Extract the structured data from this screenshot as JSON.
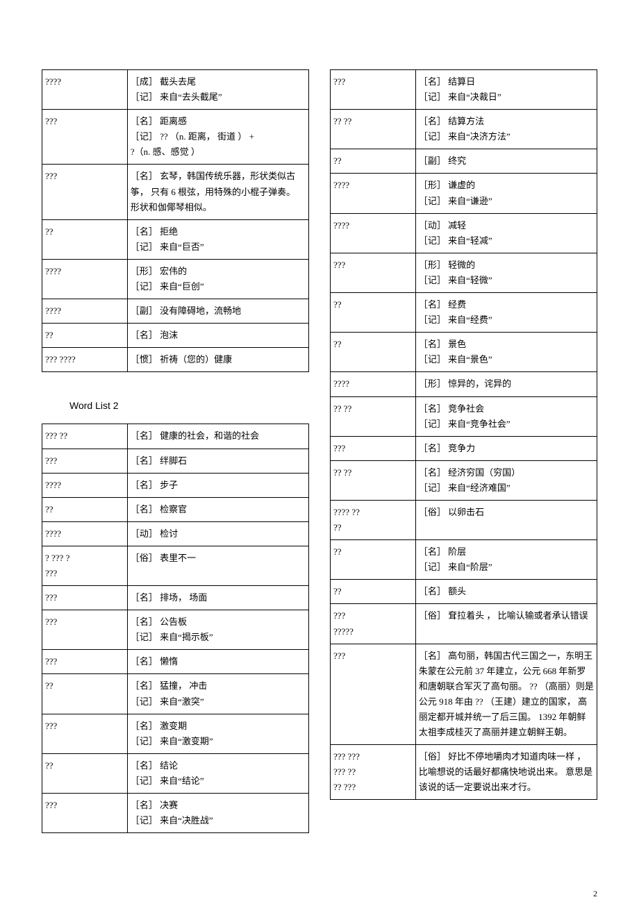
{
  "left_top": {
    "rows": [
      {
        "term": "????",
        "def": "［成］ 截头去尾\n［记］ 来自“去头截尾”"
      },
      {
        "term": "???",
        "def": "［名］ 距离感\n［记］ ??  （n. 距离， 街道 ） +\n?（n. 感、感觉 ）"
      },
      {
        "term": "???",
        "def": "［名］ 玄琴，韩国传统乐器，形状类似古筝， 只有 6 根弦，用特殊的小棍子弹奏。    形状和伽倻琴相似。"
      },
      {
        "term": "??",
        "def": "［名］ 拒绝\n［记］ 来自“巨否”"
      },
      {
        "term": "????",
        "def": "［形］ 宏伟的\n［记］ 来自“巨创”"
      },
      {
        "term": "????",
        "def": "［副］ 没有障碍地，流畅地"
      },
      {
        "term": "??",
        "def": "［名］ 泡沫"
      },
      {
        "term": "???    ????",
        "def": "［惯］ 祈祷（您的）健康"
      }
    ]
  },
  "heading": "Word List 2",
  "left_bottom": {
    "rows": [
      {
        "term": "???   ??",
        "def": "［名］ 健康的社会，和谐的社会"
      },
      {
        "term": "???",
        "def": "［名］ 绊脚石"
      },
      {
        "term": "????",
        "def": "［名］ 步子"
      },
      {
        "term": "??",
        "def": "［名］ 检察官"
      },
      {
        "term": "????",
        "def": "［动］ 检讨"
      },
      {
        "term": "?  ???    ?\n???",
        "def": "［俗］ 表里不一"
      },
      {
        "term": "???",
        "def": "［名］ 排场， 场面"
      },
      {
        "term": "???",
        "def": "［名］ 公告板\n［记］ 来自“揭示板”"
      },
      {
        "term": "???",
        "def": "［名］ 懒惰"
      },
      {
        "term": "??",
        "def": "［名］ 猛撞， 冲击\n［记］ 来自“激突”"
      },
      {
        "term": "???",
        "def": "［名］ 激变期\n［记］ 来自“激变期”"
      },
      {
        "term": "??",
        "def": "［名］ 结论\n［记］ 来自“结论”"
      },
      {
        "term": "???",
        "def": "［名］ 决赛\n［记］ 来自“决胜战”"
      }
    ]
  },
  "right": {
    "rows": [
      {
        "term": "???",
        "def": "［名］ 结算日\n［记］ 来自“决裁日”"
      },
      {
        "term": "??   ??",
        "def": "［名］ 结算方法\n［记］ 来自“决济方法”"
      },
      {
        "term": "??",
        "def": "［副］ 终究"
      },
      {
        "term": "????",
        "def": "［形］ 谦虚的\n［记］ 来自“谦逊”"
      },
      {
        "term": "????",
        "def": "［动］ 减轻\n［记］ 来自“轻减”"
      },
      {
        "term": "???",
        "def": "［形］ 轻微的\n［记］ 来自“轻微”"
      },
      {
        "term": "??",
        "def": "［名］ 经费\n［记］ 来自“经费”"
      },
      {
        "term": "??",
        "def": "［名］ 景色\n［记］ 来自“景色”"
      },
      {
        "term": "????",
        "def": "［形］ 惊异的，诧异的"
      },
      {
        "term": "??   ??",
        "def": "［名］ 竞争社会\n［记］ 来自“竞争社会”"
      },
      {
        "term": "???",
        "def": "［名］ 竞争力"
      },
      {
        "term": "??   ??",
        "def": "［名］ 经济穷国（穷国）\n［记］ 来自“经济难国”"
      },
      {
        "term": "????    ??\n??",
        "def": "［俗］ 以卵击石"
      },
      {
        "term": "??",
        "def": "［名］ 阶层\n［记］ 来自“阶层”"
      },
      {
        "term": "??",
        "def": "［名］ 额头"
      },
      {
        "term": "???\n?????",
        "def": "［俗］ 耷拉着头 ， 比喻认输或者承认错误"
      },
      {
        "term": "???",
        "def": "［名］ 高句丽，韩国古代三国之一，东明王朱蒙在公元前   37 年建立，公元 668 年新罗和唐朝联合军灭了高句丽。  ?? （高丽）则是公元  918 年由 ?? （王建）建立的国家， 高丽定都开城并统一了后三国。  1392 年朝鲜太祖李成桂灭了高丽并建立朝鲜王朝。"
      },
      {
        "term": "???    ???\n???    ??\n??   ???",
        "def": "［俗］ 好比不停地嚼肉才知道肉味一样 ， 比喻想说的话最好都痛快地说出来。 意思是该说的话一定要说出来才行。"
      }
    ]
  },
  "pagenum": "2"
}
